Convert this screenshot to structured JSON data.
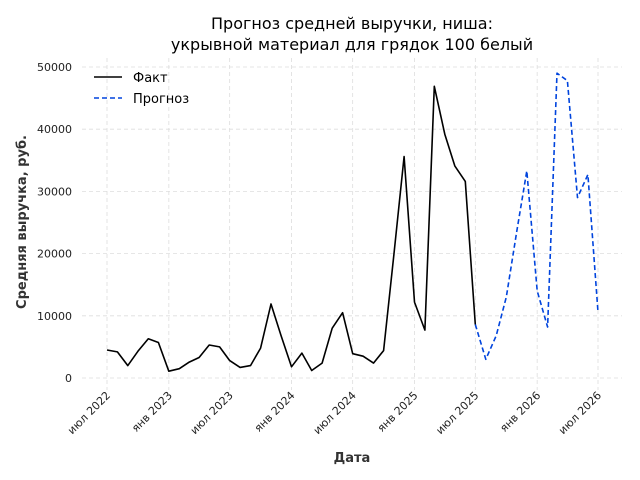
{
  "chart_data": {
    "type": "line",
    "title": [
      "Прогноз средней выручки, ниша:",
      "укрывной материал для грядок 100 белый"
    ],
    "xlabel": "Дата",
    "ylabel": "Средняя выручка, руб.",
    "ylim": [
      0,
      50000
    ],
    "yticks": [
      0,
      10000,
      20000,
      30000,
      40000,
      50000
    ],
    "xticks": [
      {
        "date": "2022-07-01",
        "label": "июл 2022"
      },
      {
        "date": "2023-01-01",
        "label": "янв 2023"
      },
      {
        "date": "2023-07-01",
        "label": "июл 2023"
      },
      {
        "date": "2024-01-01",
        "label": "янв 2024"
      },
      {
        "date": "2024-07-01",
        "label": "июл 2024"
      },
      {
        "date": "2025-01-01",
        "label": "янв 2025"
      },
      {
        "date": "2025-07-01",
        "label": "июл 2025"
      },
      {
        "date": "2026-01-01",
        "label": "янв 2026"
      },
      {
        "date": "2026-07-01",
        "label": "июл 2026"
      }
    ],
    "grid": true,
    "legend_position": "top-left",
    "series": [
      {
        "name": "Факт",
        "color": "#000000",
        "style": "solid",
        "points": [
          {
            "x": "2022-07-01",
            "y": 4500
          },
          {
            "x": "2022-08-01",
            "y": 4200
          },
          {
            "x": "2022-09-01",
            "y": 2000
          },
          {
            "x": "2022-10-01",
            "y": 4300
          },
          {
            "x": "2022-11-01",
            "y": 6300
          },
          {
            "x": "2022-12-01",
            "y": 5700
          },
          {
            "x": "2023-01-01",
            "y": 1100
          },
          {
            "x": "2023-02-01",
            "y": 1500
          },
          {
            "x": "2023-03-01",
            "y": 2500
          },
          {
            "x": "2023-04-01",
            "y": 3300
          },
          {
            "x": "2023-05-01",
            "y": 5300
          },
          {
            "x": "2023-06-01",
            "y": 5000
          },
          {
            "x": "2023-07-01",
            "y": 2800
          },
          {
            "x": "2023-08-01",
            "y": 1700
          },
          {
            "x": "2023-09-01",
            "y": 2000
          },
          {
            "x": "2023-10-01",
            "y": 4800
          },
          {
            "x": "2023-11-01",
            "y": 11900
          },
          {
            "x": "2023-12-01",
            "y": 6800
          },
          {
            "x": "2024-01-01",
            "y": 1800
          },
          {
            "x": "2024-02-01",
            "y": 4000
          },
          {
            "x": "2024-03-01",
            "y": 1200
          },
          {
            "x": "2024-04-01",
            "y": 2400
          },
          {
            "x": "2024-05-01",
            "y": 8000
          },
          {
            "x": "2024-06-01",
            "y": 10500
          },
          {
            "x": "2024-07-01",
            "y": 3900
          },
          {
            "x": "2024-08-01",
            "y": 3500
          },
          {
            "x": "2024-09-01",
            "y": 2400
          },
          {
            "x": "2024-10-01",
            "y": 4400
          },
          {
            "x": "2024-11-01",
            "y": 20000
          },
          {
            "x": "2024-12-01",
            "y": 35600
          },
          {
            "x": "2025-01-01",
            "y": 12200
          },
          {
            "x": "2025-02-01",
            "y": 7700
          },
          {
            "x": "2025-03-01",
            "y": 46900
          },
          {
            "x": "2025-04-01",
            "y": 39200
          },
          {
            "x": "2025-05-01",
            "y": 34100
          },
          {
            "x": "2025-06-01",
            "y": 31600
          },
          {
            "x": "2025-07-01",
            "y": 8600
          }
        ]
      },
      {
        "name": "Прогноз",
        "color": "#0044dd",
        "style": "dashed",
        "points": [
          {
            "x": "2025-07-01",
            "y": 8600
          },
          {
            "x": "2025-08-01",
            "y": 3000
          },
          {
            "x": "2025-09-01",
            "y": 6800
          },
          {
            "x": "2025-10-01",
            "y": 13000
          },
          {
            "x": "2025-11-01",
            "y": 23500
          },
          {
            "x": "2025-12-01",
            "y": 33300
          },
          {
            "x": "2026-01-01",
            "y": 14000
          },
          {
            "x": "2026-02-01",
            "y": 8200
          },
          {
            "x": "2026-03-01",
            "y": 49000
          },
          {
            "x": "2026-04-01",
            "y": 47800
          },
          {
            "x": "2026-05-01",
            "y": 29000
          },
          {
            "x": "2026-06-01",
            "y": 32700
          },
          {
            "x": "2026-07-01",
            "y": 10600
          }
        ]
      }
    ]
  }
}
